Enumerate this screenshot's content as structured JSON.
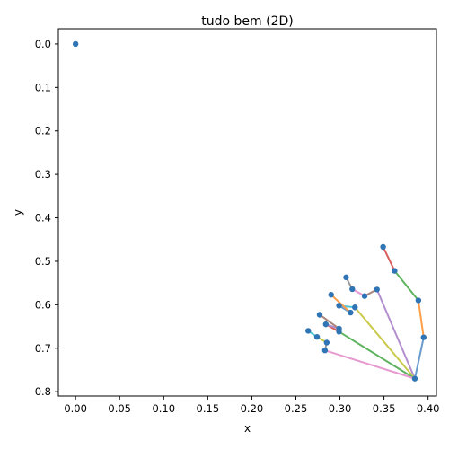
{
  "chart_data": {
    "type": "scatter",
    "title": "tudo bem (2D)",
    "xlabel": "x",
    "ylabel": "y",
    "xlim": [
      -0.0195,
      0.4095
    ],
    "ylim": [
      0.81,
      -0.035
    ],
    "y_inverted": true,
    "grid": false,
    "xticks": [
      "0.00",
      "0.05",
      "0.10",
      "0.15",
      "0.20",
      "0.25",
      "0.30",
      "0.35",
      "0.40"
    ],
    "xtick_values": [
      0.0,
      0.05,
      0.1,
      0.15,
      0.2,
      0.25,
      0.3,
      0.35,
      0.4
    ],
    "yticks": [
      "0.0",
      "0.1",
      "0.2",
      "0.3",
      "0.4",
      "0.5",
      "0.6",
      "0.7",
      "0.8"
    ],
    "ytick_values": [
      0.0,
      0.1,
      0.2,
      0.3,
      0.4,
      0.5,
      0.6,
      0.7,
      0.8
    ],
    "points": [
      {
        "x": 0.0,
        "y": 0.0
      },
      {
        "x": 0.385,
        "y": 0.77
      },
      {
        "x": 0.395,
        "y": 0.675
      },
      {
        "x": 0.389,
        "y": 0.59
      },
      {
        "x": 0.362,
        "y": 0.522
      },
      {
        "x": 0.349,
        "y": 0.467
      },
      {
        "x": 0.342,
        "y": 0.565
      },
      {
        "x": 0.328,
        "y": 0.58
      },
      {
        "x": 0.314,
        "y": 0.564
      },
      {
        "x": 0.307,
        "y": 0.537
      },
      {
        "x": 0.317,
        "y": 0.606
      },
      {
        "x": 0.299,
        "y": 0.602
      },
      {
        "x": 0.312,
        "y": 0.618
      },
      {
        "x": 0.29,
        "y": 0.577
      },
      {
        "x": 0.299,
        "y": 0.662
      },
      {
        "x": 0.284,
        "y": 0.645
      },
      {
        "x": 0.299,
        "y": 0.655
      },
      {
        "x": 0.277,
        "y": 0.623
      },
      {
        "x": 0.283,
        "y": 0.705
      },
      {
        "x": 0.285,
        "y": 0.687
      },
      {
        "x": 0.274,
        "y": 0.674
      },
      {
        "x": 0.264,
        "y": 0.66
      }
    ],
    "segments": [
      {
        "from": 1,
        "to": 2,
        "color": "#6a9bcc"
      },
      {
        "from": 2,
        "to": 3,
        "color": "#ff9f4a"
      },
      {
        "from": 3,
        "to": 4,
        "color": "#5fb35f"
      },
      {
        "from": 4,
        "to": 5,
        "color": "#d95f5f"
      },
      {
        "from": 1,
        "to": 6,
        "color": "#b38fd0"
      },
      {
        "from": 6,
        "to": 7,
        "color": "#a9847a"
      },
      {
        "from": 7,
        "to": 8,
        "color": "#e79ad0"
      },
      {
        "from": 8,
        "to": 9,
        "color": "#999999"
      },
      {
        "from": 1,
        "to": 10,
        "color": "#c9c94a"
      },
      {
        "from": 10,
        "to": 11,
        "color": "#4fc6d6"
      },
      {
        "from": 11,
        "to": 12,
        "color": "#6a9bcc"
      },
      {
        "from": 12,
        "to": 13,
        "color": "#ff9f4a"
      },
      {
        "from": 1,
        "to": 14,
        "color": "#5fb35f"
      },
      {
        "from": 14,
        "to": 15,
        "color": "#d95f5f"
      },
      {
        "from": 15,
        "to": 16,
        "color": "#b38fd0"
      },
      {
        "from": 16,
        "to": 17,
        "color": "#a9847a"
      },
      {
        "from": 1,
        "to": 18,
        "color": "#e79ad0"
      },
      {
        "from": 18,
        "to": 19,
        "color": "#999999"
      },
      {
        "from": 19,
        "to": 20,
        "color": "#c9c94a"
      },
      {
        "from": 20,
        "to": 21,
        "color": "#4fc6d6"
      }
    ],
    "point_color": "#2f74b4"
  }
}
